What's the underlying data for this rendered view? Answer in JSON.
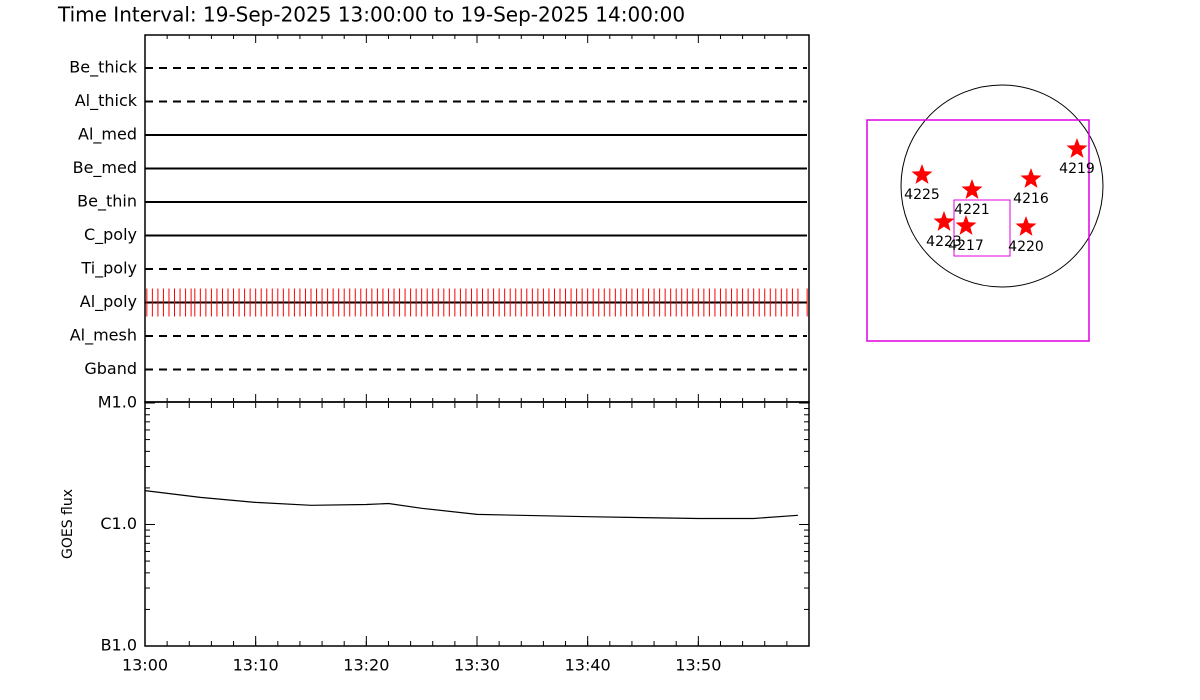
{
  "chart_data": [
    {
      "type": "timeline",
      "title": "Time Interval: 19-Sep-2025 13:00:00 to 19-Sep-2025 14:00:00",
      "categories": [
        "Be_thick",
        "Al_thick",
        "Al_med",
        "Be_med",
        "Be_thin",
        "C_poly",
        "Ti_poly",
        "Al_poly",
        "Al_mesh",
        "Gband"
      ],
      "line_styles": [
        "dashed",
        "dashed",
        "solid",
        "solid",
        "solid",
        "solid",
        "dashed",
        "solid",
        "dashed",
        "dashed"
      ],
      "observations": {
        "category": "Al_poly",
        "color": "#ff0000",
        "x": [
          "13:00:10",
          "13:00:40",
          "13:01:10",
          "13:01:40",
          "13:02:10",
          "13:02:40",
          "13:03:10",
          "13:03:40",
          "13:04:10",
          "13:04:30",
          "13:05:00",
          "13:05:30",
          "13:06:00",
          "13:06:30",
          "13:07:00",
          "13:07:30",
          "13:08:00",
          "13:08:30",
          "13:09:00",
          "13:09:30",
          "13:10:00",
          "13:10:30",
          "13:11:00",
          "13:11:30",
          "13:12:00",
          "13:12:30",
          "13:13:00",
          "13:13:30",
          "13:14:00",
          "13:14:30",
          "13:15:00",
          "13:15:30",
          "13:16:00",
          "13:16:30",
          "13:17:00",
          "13:17:30",
          "13:18:00",
          "13:18:30",
          "13:19:00",
          "13:19:30",
          "13:20:00",
          "13:20:30",
          "13:21:00",
          "13:21:30",
          "13:22:00",
          "13:22:30",
          "13:23:00",
          "13:23:30",
          "13:24:00",
          "13:24:30",
          "13:25:00",
          "13:25:30",
          "13:26:00",
          "13:26:30",
          "13:27:00",
          "13:27:30",
          "13:28:00",
          "13:28:30",
          "13:29:00",
          "13:29:30",
          "13:30:00",
          "13:30:30",
          "13:31:00",
          "13:31:30",
          "13:32:00",
          "13:32:30",
          "13:33:00",
          "13:33:30",
          "13:34:00",
          "13:34:30",
          "13:35:00",
          "13:35:30",
          "13:36:00",
          "13:36:30",
          "13:37:00",
          "13:37:30",
          "13:38:00",
          "13:38:30",
          "13:39:00",
          "13:39:30",
          "13:40:00",
          "13:40:30",
          "13:41:00",
          "13:41:30",
          "13:42:00",
          "13:42:30",
          "13:43:00",
          "13:43:30",
          "13:44:00",
          "13:44:30",
          "13:45:00",
          "13:45:30",
          "13:46:00",
          "13:46:30",
          "13:47:00",
          "13:47:30",
          "13:48:00",
          "13:48:30",
          "13:49:00",
          "13:49:30",
          "13:50:00",
          "13:50:30",
          "13:51:00",
          "13:51:30",
          "13:52:00",
          "13:52:30",
          "13:53:00",
          "13:53:30",
          "13:54:00",
          "13:54:30",
          "13:55:00",
          "13:55:30",
          "13:56:00",
          "13:56:30",
          "13:57:00",
          "13:57:30",
          "13:58:00",
          "13:58:30",
          "13:59:00",
          "13:59:50"
        ]
      },
      "xlim": [
        "13:00",
        "14:00"
      ]
    },
    {
      "type": "line",
      "ylabel": "GOES flux",
      "x": [
        "13:00",
        "13:05",
        "13:10",
        "13:15",
        "13:20",
        "13:22",
        "13:25",
        "13:30",
        "13:40",
        "13:50",
        "13:55",
        "13:59"
      ],
      "values": [
        1.9e-06,
        1.67e-06,
        1.52e-06,
        1.44e-06,
        1.46e-06,
        1.49e-06,
        1.36e-06,
        1.21e-06,
        1.16e-06,
        1.12e-06,
        1.12e-06,
        1.19e-06
      ],
      "color": "#000000",
      "log_scale": true,
      "ylim": [
        1e-07,
        1e-05
      ],
      "yticks": [
        {
          "value": 1e-07,
          "label": "B1.0"
        },
        {
          "value": 1e-06,
          "label": "C1.0"
        },
        {
          "value": 1e-05,
          "label": "M1.0"
        }
      ],
      "xlim": [
        "13:00",
        "14:00"
      ],
      "xticks": [
        "13:00",
        "13:10",
        "13:20",
        "13:30",
        "13:40",
        "13:50"
      ]
    }
  ],
  "map": {
    "regions": [
      "4225",
      "4221",
      "4216",
      "4219",
      "4223",
      "4217",
      "4220"
    ]
  }
}
